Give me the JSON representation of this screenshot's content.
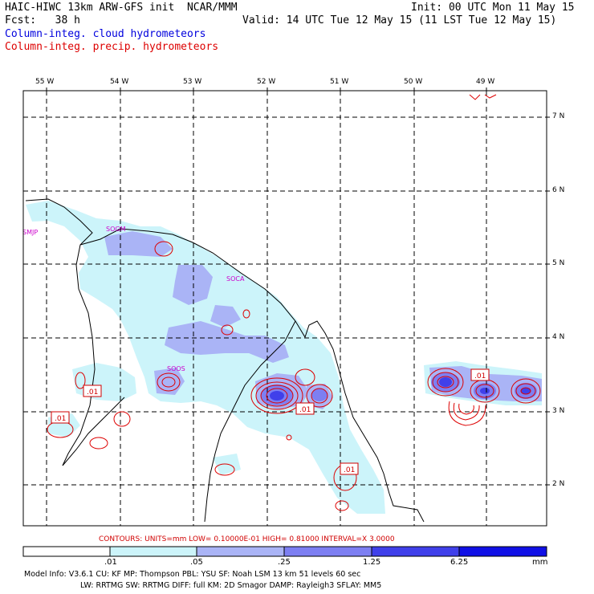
{
  "header": {
    "line1_left": "HAIC-HIWC 13km ARW-GFS init  NCAR/MMM",
    "line1_right": "Init: 00 UTC Mon 11 May 15",
    "line2_left": "Fcst:   38 h",
    "line2_right": "Valid: 14 UTC Tue 12 May 15 (11 LST Tue 12 May 15)",
    "line3": "Column-integ. cloud hydrometeors",
    "line4": "Column-integ. precip. hydrometeors",
    "line3_color": "#0000dd",
    "line4_color": "#dd0000"
  },
  "axes": {
    "lon_labels": [
      "55 W",
      "54 W",
      "53 W",
      "52 W",
      "51 W",
      "50 W",
      "49 W"
    ],
    "lat_labels": [
      "7 N",
      "6 N",
      "5 N",
      "4 N",
      "3 N",
      "2 N"
    ]
  },
  "stations": [
    "SMJP",
    "SOGM",
    "SOCA",
    "SOOS"
  ],
  "contour_labels": [
    ".01",
    ".01",
    ".01",
    ".01",
    ".01"
  ],
  "footer": {
    "contours_line": "CONTOURS:  UNITS=mm   LOW= 0.10000E-01   HIGH= 0.81000      INTERVAL=X  3.0000",
    "colorbar_ticks": [
      ".01",
      ".05",
      ".25",
      "1.25",
      "6.25"
    ],
    "colorbar_unit": "mm",
    "colorbar_colors": [
      "#ffffff",
      "#ccf4fa",
      "#aab4f6",
      "#7d7ff2",
      "#4040ea",
      "#1010e6"
    ],
    "model_line1": "Model Info: V3.6.1   CU: KF       MP: Thompson    PBL: YSU       SF: Noah LSM     13 km   51 levels   60 sec",
    "model_line2": "LW: RRTMG    SW: RRTMG  DIFF: full   KM: 2D Smagor DAMP: Rayleigh3  SFLAY: MM5"
  }
}
